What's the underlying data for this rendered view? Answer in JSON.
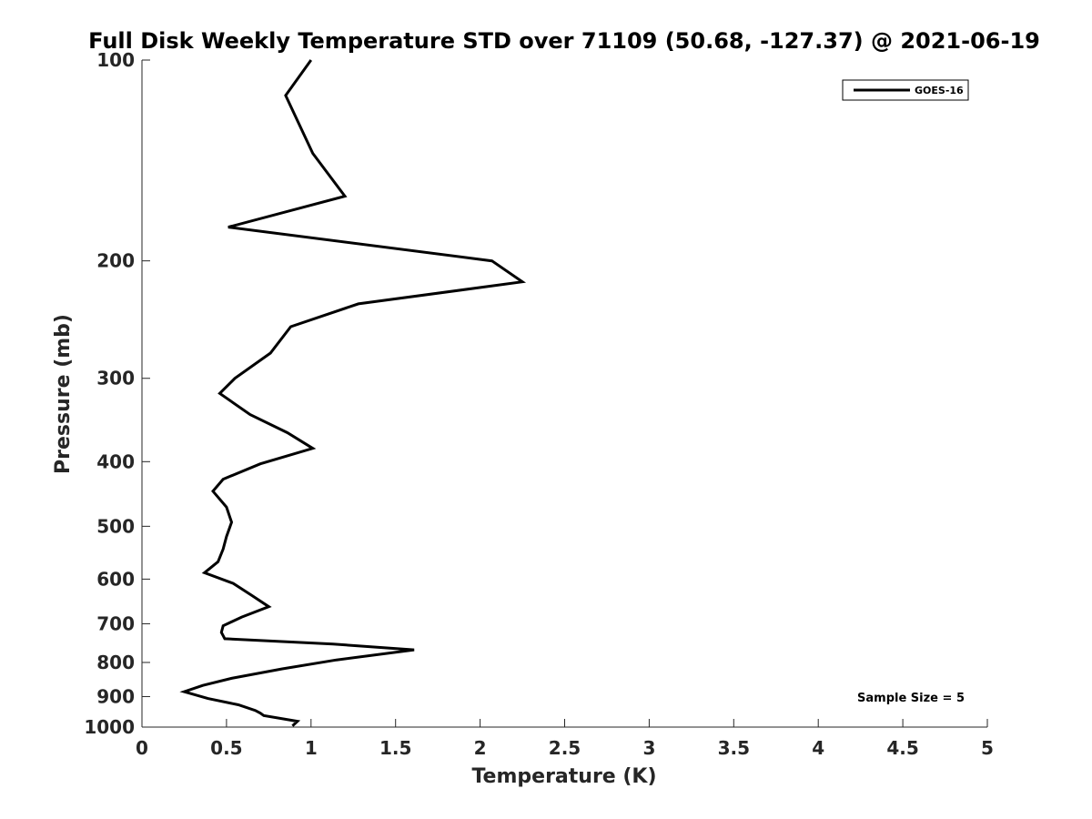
{
  "chart_data": {
    "type": "line",
    "title": "Full Disk Weekly Temperature STD over 71109 (50.68, -127.37) @ 2021-06-19",
    "xlabel": "Temperature (K)",
    "ylabel": "Pressure (mb)",
    "xlim": [
      0,
      5
    ],
    "ylim": [
      100,
      1000
    ],
    "y_scale": "log",
    "y_direction": "reversed",
    "x_ticks": [
      "0",
      "0.5",
      "1",
      "1.5",
      "2",
      "2.5",
      "3",
      "3.5",
      "4",
      "4.5",
      "5"
    ],
    "y_ticks": [
      "100",
      "200",
      "300",
      "400",
      "500",
      "600",
      "700",
      "800",
      "900",
      "1000"
    ],
    "grid": false,
    "legend_position": "top-right",
    "series": [
      {
        "name": "GOES-16",
        "color": "#000000",
        "x": [
          1.0,
          0.85,
          1.01,
          1.2,
          0.51,
          2.07,
          2.25,
          1.28,
          0.88,
          0.76,
          0.55,
          0.46,
          0.64,
          0.86,
          1.01,
          0.7,
          0.48,
          0.42,
          0.5,
          0.53,
          0.5,
          0.48,
          0.45,
          0.37,
          0.54,
          0.65,
          0.75,
          0.59,
          0.48,
          0.47,
          0.49,
          1.13,
          1.61,
          1.15,
          0.83,
          0.53,
          0.36,
          0.25,
          0.39,
          0.57,
          0.67,
          0.7,
          0.72,
          0.92,
          0.89
        ],
        "y": [
          100,
          113,
          138,
          160,
          178,
          200,
          215,
          232,
          251,
          275,
          300,
          316,
          340,
          362,
          382,
          403,
          425,
          443,
          468,
          493,
          518,
          541,
          565,
          587,
          609,
          635,
          660,
          684,
          705,
          721,
          737,
          751,
          766,
          793,
          818,
          845,
          866,
          885,
          906,
          926,
          944,
          953,
          961,
          980,
          996
        ]
      }
    ]
  },
  "annotation": "Sample Size = 5"
}
